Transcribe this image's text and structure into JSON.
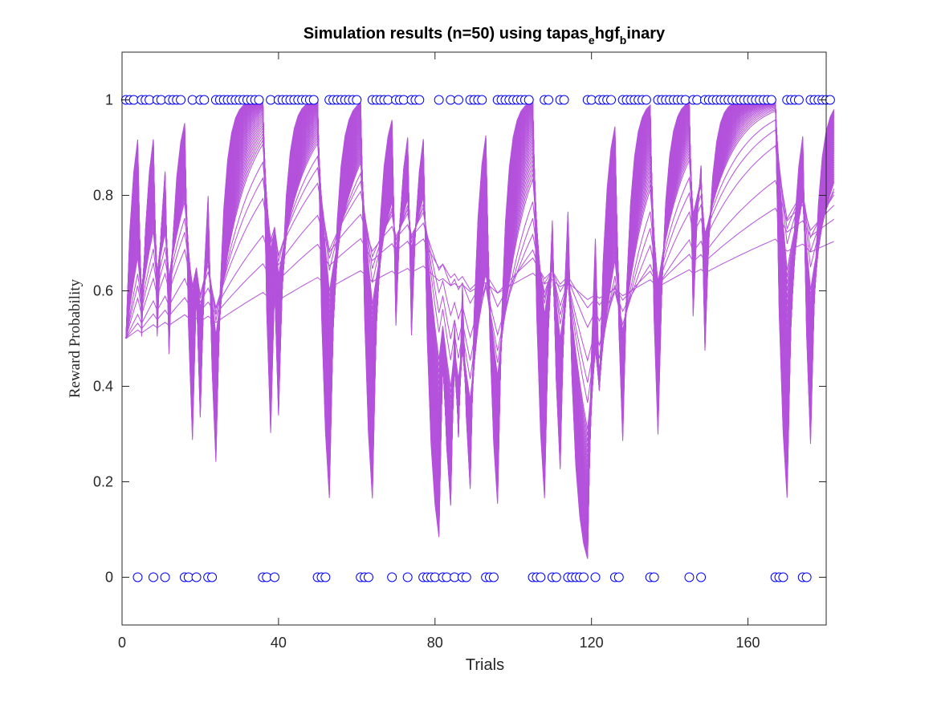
{
  "chart_data": {
    "type": "line",
    "title": {
      "prefix": "Simulation results (n=50) using tapas",
      "sub1": "e",
      "mid": "hgf",
      "sub2": "b",
      "suffix": "inary"
    },
    "xlabel": "Trials",
    "ylabel": "Reward Probability",
    "xlim": [
      0,
      180
    ],
    "ylim": [
      -0.1,
      1.1
    ],
    "xticks": [
      0,
      40,
      80,
      120,
      160
    ],
    "yticks": [
      0,
      0.2,
      0.4,
      0.6,
      0.8,
      1
    ],
    "ytick_labels": [
      "0",
      "0.2",
      "0.4",
      "0.6",
      "0.8",
      "1"
    ],
    "n_simulations": 50,
    "line_color": "#b452dc",
    "marker_color": "#0000ff",
    "background_color": "#ffffff",
    "outcomes": [
      1,
      1,
      1,
      0,
      1,
      1,
      1,
      0,
      1,
      1,
      0,
      1,
      1,
      1,
      1,
      0,
      0,
      1,
      0,
      1,
      1,
      0,
      0,
      1,
      1,
      1,
      1,
      1,
      1,
      1,
      1,
      1,
      1,
      1,
      1,
      0,
      0,
      1,
      0,
      1,
      1,
      1,
      1,
      1,
      1,
      1,
      1,
      1,
      1,
      0,
      0,
      0,
      1,
      1,
      1,
      1,
      1,
      1,
      1,
      1,
      0,
      0,
      0,
      1,
      1,
      1,
      1,
      1,
      0,
      1,
      1,
      1,
      0,
      1,
      1,
      1,
      0,
      0,
      0,
      0,
      1,
      0,
      0,
      1,
      0,
      1,
      0,
      0,
      1,
      1,
      1,
      1,
      0,
      0,
      0,
      1,
      1,
      1,
      1,
      1,
      1,
      1,
      1,
      1,
      0,
      0,
      0,
      1,
      1,
      0,
      0,
      1,
      1,
      0,
      0,
      0,
      0,
      0,
      1,
      1,
      0,
      1,
      1,
      1,
      1,
      0,
      0,
      1,
      1,
      1,
      1,
      1,
      1,
      1,
      0,
      0,
      1,
      1,
      1,
      1,
      1,
      1,
      1,
      1,
      0,
      1,
      1,
      0,
      1,
      1,
      1,
      1,
      1,
      1,
      1,
      1,
      1,
      1,
      1,
      1,
      1,
      1,
      1,
      1,
      1,
      1,
      0,
      0,
      0,
      1,
      1,
      1,
      1,
      0,
      0,
      1,
      1,
      1,
      1,
      1,
      1
    ]
  }
}
